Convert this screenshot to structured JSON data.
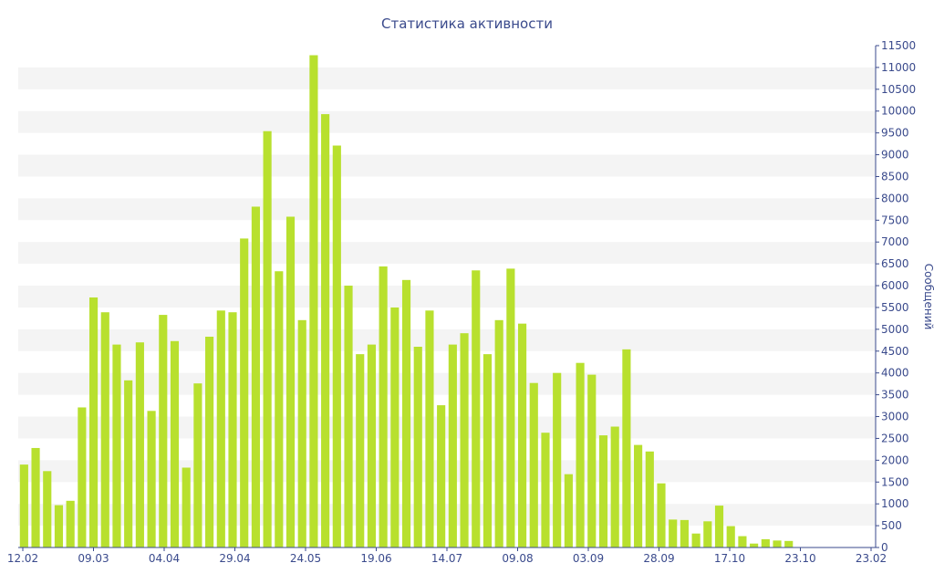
{
  "chart_data": {
    "type": "bar",
    "title": "Статистика активности",
    "xlabel": "",
    "ylabel": "Сообщений",
    "ylim": [
      0,
      11500
    ],
    "y_ticks": [
      0,
      500,
      1000,
      1500,
      2000,
      2500,
      3000,
      3500,
      4000,
      4500,
      5000,
      5500,
      6000,
      6500,
      7000,
      7500,
      8000,
      8500,
      9000,
      9500,
      10000,
      10500,
      11000,
      11500
    ],
    "x_tick_labels": [
      "12.02",
      "09.03",
      "04.04",
      "29.04",
      "24.05",
      "19.06",
      "14.07",
      "09.08",
      "03.09",
      "28.09",
      "17.10",
      "23.10",
      "23.02"
    ],
    "values": [
      1900,
      2280,
      1750,
      970,
      1070,
      3210,
      5730,
      5390,
      4650,
      3830,
      4700,
      3130,
      5330,
      4730,
      1830,
      3760,
      4830,
      5430,
      5390,
      7080,
      7810,
      9540,
      6330,
      7580,
      5210,
      11280,
      9930,
      9210,
      6000,
      4430,
      4650,
      6440,
      5500,
      6130,
      4600,
      5430,
      3260,
      4650,
      4910,
      6350,
      4430,
      5210,
      6390,
      5130,
      3770,
      2630,
      4000,
      1680,
      4230,
      3960,
      2570,
      2770,
      4540,
      2350,
      2200,
      1470,
      640,
      630,
      320,
      600,
      960,
      490,
      260,
      90,
      190,
      160,
      150,
      10,
      10,
      10,
      10,
      10,
      10,
      10
    ],
    "bar_color": "#b8e02e",
    "grid": true,
    "band_color": "#f4f4f4",
    "axis_color": "#3a4a8c"
  }
}
